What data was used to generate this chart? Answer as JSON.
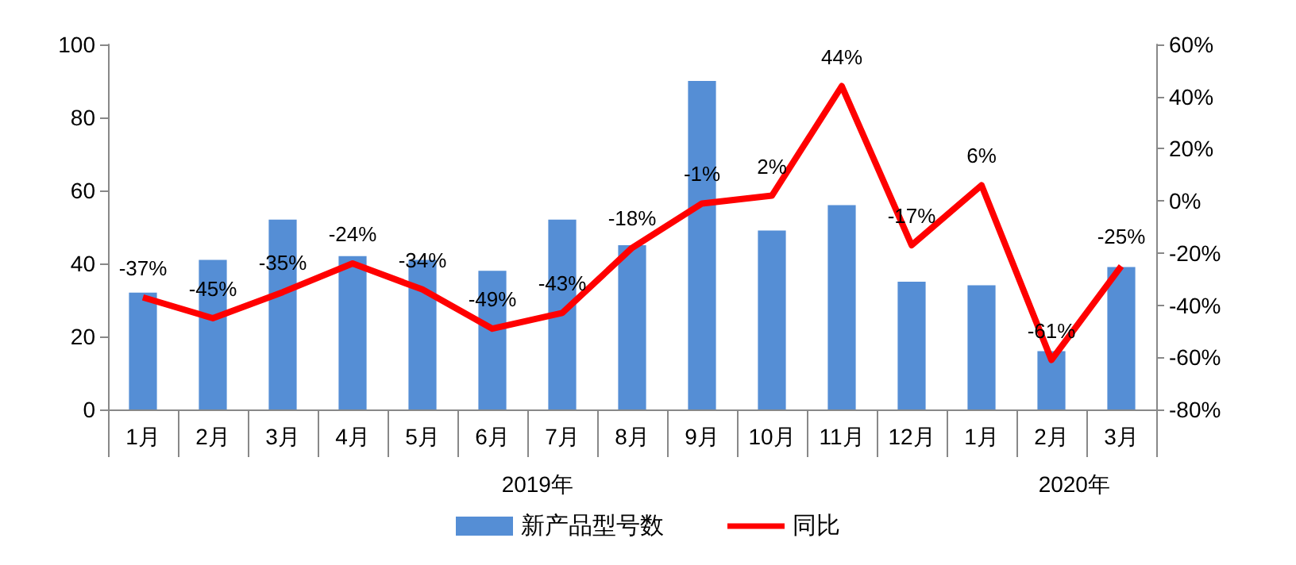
{
  "chart_data": {
    "type": "bar",
    "categories": [
      "1月",
      "2月",
      "3月",
      "4月",
      "5月",
      "6月",
      "7月",
      "8月",
      "9月",
      "10月",
      "11月",
      "12月",
      "1月",
      "2月",
      "3月"
    ],
    "series": [
      {
        "name": "新产品型号数",
        "color": "#558ed5",
        "values": [
          32,
          41,
          52,
          42,
          41,
          38,
          52,
          45,
          90,
          49,
          56,
          35,
          34,
          16,
          39
        ]
      },
      {
        "name": "同比",
        "type": "line",
        "axis": "y2",
        "color": "#ff0000",
        "values": [
          -37,
          -45,
          -35,
          -24,
          -34,
          -49,
          -43,
          -18,
          -1,
          2,
          44,
          -17,
          6,
          -61,
          -25
        ],
        "value_labels": [
          "-37%",
          "-45%",
          "-35%",
          "-24%",
          "-34%",
          "-49%",
          "-43%",
          "-18%",
          "-1%",
          "2%",
          "44%",
          "-17%",
          "6%",
          "-61%",
          "-25%"
        ]
      }
    ],
    "ylim": [
      0,
      100
    ],
    "yticks": [
      0,
      20,
      40,
      60,
      80,
      100
    ],
    "y2lim": [
      -80,
      60
    ],
    "y2ticks": [
      {
        "value": -80,
        "label": "-80%"
      },
      {
        "value": -60,
        "label": "-60%"
      },
      {
        "value": -40,
        "label": "-40%"
      },
      {
        "value": -20,
        "label": "-20%"
      },
      {
        "value": 0,
        "label": "0%"
      },
      {
        "value": 20,
        "label": "20%"
      },
      {
        "value": 40,
        "label": "40%"
      },
      {
        "value": 60,
        "label": "60%"
      }
    ],
    "annotations": [
      "2019年",
      "2020年"
    ],
    "grid": false,
    "legend": "bottom",
    "marker": "none",
    "line_style": "solid"
  }
}
